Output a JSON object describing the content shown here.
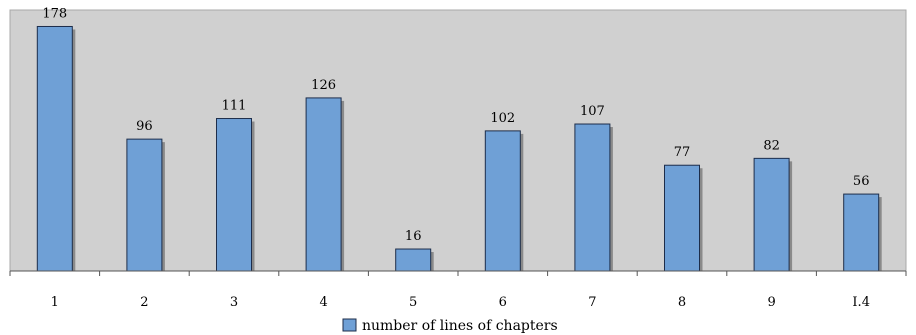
{
  "chart_data": {
    "type": "bar",
    "categories": [
      "1",
      "2",
      "3",
      "4",
      "5",
      "6",
      "7",
      "8",
      "9",
      "I.4"
    ],
    "series": [
      {
        "name": "number of lines of chapters",
        "values": [
          178,
          96,
          111,
          126,
          16,
          102,
          107,
          77,
          82,
          56
        ]
      }
    ],
    "ylim": [
      0,
      190
    ],
    "grid": false,
    "legend_position": "bottom",
    "colors": {
      "bar": "#6fa0d6",
      "bar_border": "#1d2d4a",
      "plot_background": "#d0d0d0"
    }
  }
}
